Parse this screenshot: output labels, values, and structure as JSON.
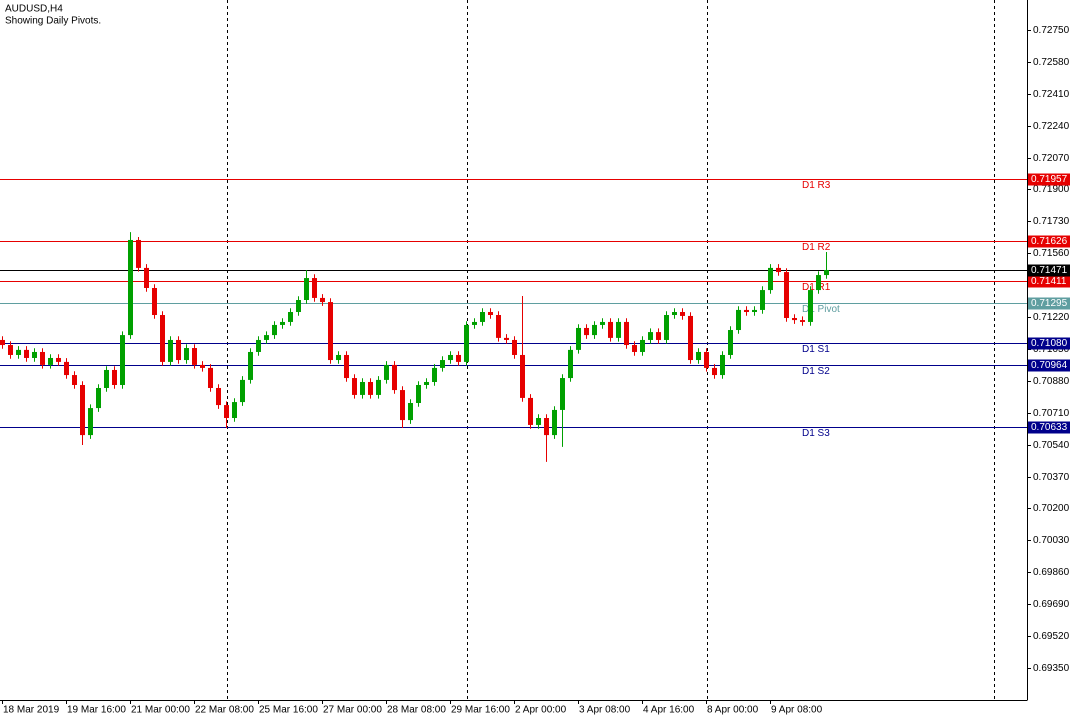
{
  "chart_data": {
    "type": "candlestick",
    "title": "AUDUSD,H4",
    "subtitle": "Showing Daily Pivots.",
    "up_color": "#00a000",
    "down_color": "#e60000",
    "grid": false,
    "categories": [
      "18 Mar 2019",
      null,
      null,
      null,
      null,
      null,
      null,
      null,
      "19 Mar 16:00",
      null,
      null,
      null,
      null,
      null,
      null,
      null,
      "21 Mar 00:00",
      null,
      null,
      null,
      null,
      null,
      null,
      null,
      "22 Mar 08:00",
      null,
      null,
      null,
      null,
      null,
      null,
      null,
      "25 Mar 16:00",
      null,
      null,
      null,
      null,
      null,
      null,
      null,
      "27 Mar 00:00",
      null,
      null,
      null,
      null,
      null,
      null,
      null,
      "28 Mar 08:00",
      null,
      null,
      null,
      null,
      null,
      null,
      null,
      "29 Mar 16:00",
      null,
      null,
      null,
      null,
      null,
      null,
      null,
      "2 Apr 00:00",
      null,
      null,
      null,
      null,
      null,
      null,
      null,
      "3 Apr 08:00",
      null,
      null,
      null,
      null,
      null,
      null,
      null,
      "4 Apr 16:00",
      null,
      null,
      null,
      null,
      null,
      null,
      null,
      "8 Apr 00:00",
      null,
      null,
      null,
      null,
      null,
      null,
      null,
      "9 Apr 08:00",
      null,
      null,
      null,
      null,
      null,
      null,
      null
    ],
    "open": [
      0.71098,
      0.71071,
      0.71018,
      0.71045,
      0.71002,
      0.71034,
      0.70965,
      0.71002,
      0.70981,
      0.70911,
      0.70858,
      0.70591,
      0.70735,
      0.70842,
      0.70938,
      0.70858,
      0.71124,
      0.71631,
      0.71482,
      0.71375,
      0.71231,
      0.70981,
      0.71098,
      0.70991,
      0.71055,
      0.70965,
      0.70949,
      0.70842,
      0.70751,
      0.70682,
      0.70767,
      0.70885,
      0.71034,
      0.71098,
      0.71124,
      0.71178,
      0.71194,
      0.71247,
      0.71311,
      0.71428,
      0.71322,
      0.713,
      0.70991,
      0.71018,
      0.70895,
      0.70805,
      0.70874,
      0.70805,
      0.70885,
      0.70965,
      0.70831,
      0.70671,
      0.70762,
      0.70858,
      0.70874,
      0.70949,
      0.70991,
      0.71018,
      0.70981,
      0.71178,
      0.71194,
      0.71247,
      0.71231,
      0.71109,
      0.71098,
      0.71018,
      0.70789,
      0.70645,
      0.70682,
      0.70591,
      0.70725,
      0.70895,
      0.71045,
      0.71162,
      0.71124,
      0.71178,
      0.71194,
      0.71109,
      0.71194,
      0.71071,
      0.71034,
      0.71098,
      0.7114,
      0.71098,
      0.71231,
      0.71247,
      0.71226,
      0.70991,
      0.71034,
      0.70949,
      0.70911,
      0.71018,
      0.71151,
      0.71258,
      0.71247,
      0.71258,
      0.71364,
      0.71482,
      0.7146,
      0.71215,
      0.71204,
      0.71194,
      0.71364,
      0.71444
    ],
    "high": [
      0.71118,
      0.71091,
      0.71065,
      0.71065,
      0.71054,
      0.71054,
      0.71022,
      0.71022,
      0.71001,
      0.70931,
      0.70878,
      0.70755,
      0.70862,
      0.70958,
      0.70958,
      0.71144,
      0.71673,
      0.71647,
      0.71502,
      0.71395,
      0.71251,
      0.71118,
      0.71118,
      0.71075,
      0.71075,
      0.70985,
      0.70969,
      0.70862,
      0.70771,
      0.70787,
      0.70905,
      0.71054,
      0.71118,
      0.71144,
      0.71198,
      0.71214,
      0.71267,
      0.71331,
      0.71471,
      0.71448,
      0.71342,
      0.7132,
      0.71038,
      0.71038,
      0.70915,
      0.70894,
      0.70894,
      0.70905,
      0.70985,
      0.70985,
      0.70851,
      0.70782,
      0.70878,
      0.70894,
      0.70969,
      0.71011,
      0.71038,
      0.71038,
      0.71198,
      0.71214,
      0.71267,
      0.71267,
      0.71251,
      0.71129,
      0.71118,
      0.71332,
      0.70809,
      0.70702,
      0.70702,
      0.70745,
      0.70915,
      0.71065,
      0.71182,
      0.71182,
      0.71198,
      0.71214,
      0.71214,
      0.71214,
      0.71214,
      0.71091,
      0.71118,
      0.7116,
      0.7116,
      0.71251,
      0.71267,
      0.71267,
      0.71246,
      0.71054,
      0.71054,
      0.70969,
      0.71038,
      0.71171,
      0.71278,
      0.71278,
      0.71278,
      0.71384,
      0.71502,
      0.71502,
      0.7148,
      0.71235,
      0.71224,
      0.71384,
      0.71464,
      0.71567
    ],
    "low": [
      0.71051,
      0.70998,
      0.70998,
      0.70982,
      0.70982,
      0.70945,
      0.70945,
      0.70961,
      0.70891,
      0.70838,
      0.70538,
      0.70571,
      0.70715,
      0.70822,
      0.70838,
      0.70838,
      0.71104,
      0.71462,
      0.71355,
      0.71211,
      0.70961,
      0.70961,
      0.70971,
      0.70971,
      0.70945,
      0.70929,
      0.70822,
      0.70731,
      0.70629,
      0.70662,
      0.70747,
      0.70865,
      0.71014,
      0.71078,
      0.71104,
      0.71158,
      0.71174,
      0.71227,
      0.71291,
      0.71302,
      0.7128,
      0.70971,
      0.70971,
      0.70875,
      0.70785,
      0.70785,
      0.70785,
      0.70785,
      0.70865,
      0.70811,
      0.70629,
      0.70651,
      0.70742,
      0.70838,
      0.70854,
      0.70929,
      0.70971,
      0.70961,
      0.70961,
      0.71158,
      0.71174,
      0.71211,
      0.71089,
      0.71078,
      0.70998,
      0.70769,
      0.70625,
      0.70625,
      0.70448,
      0.70571,
      0.70528,
      0.70875,
      0.71025,
      0.71104,
      0.71104,
      0.71158,
      0.71089,
      0.71089,
      0.71051,
      0.71014,
      0.71014,
      0.71078,
      0.71078,
      0.71078,
      0.71211,
      0.71206,
      0.70971,
      0.70971,
      0.70929,
      0.70891,
      0.70891,
      0.70998,
      0.71131,
      0.71227,
      0.71227,
      0.71238,
      0.71344,
      0.7144,
      0.71195,
      0.71184,
      0.71174,
      0.71174,
      0.71344,
      0.71424
    ],
    "close": [
      0.71071,
      0.71018,
      0.71045,
      0.71002,
      0.71034,
      0.70965,
      0.71002,
      0.70981,
      0.70911,
      0.70858,
      0.70591,
      0.70735,
      0.70842,
      0.70938,
      0.70858,
      0.71124,
      0.71631,
      0.71482,
      0.71375,
      0.71231,
      0.70981,
      0.71098,
      0.70991,
      0.71055,
      0.70965,
      0.70949,
      0.70842,
      0.70751,
      0.70682,
      0.70767,
      0.70885,
      0.71034,
      0.71098,
      0.71124,
      0.71178,
      0.71194,
      0.71247,
      0.71311,
      0.71428,
      0.71322,
      0.713,
      0.70991,
      0.71018,
      0.70895,
      0.70805,
      0.70874,
      0.70805,
      0.70885,
      0.70965,
      0.70831,
      0.70671,
      0.70762,
      0.70858,
      0.70874,
      0.70949,
      0.70991,
      0.71018,
      0.70981,
      0.71178,
      0.71194,
      0.71247,
      0.71231,
      0.71109,
      0.71098,
      0.71018,
      0.70789,
      0.70645,
      0.70682,
      0.70591,
      0.70725,
      0.70895,
      0.71045,
      0.71162,
      0.71124,
      0.71178,
      0.71194,
      0.71109,
      0.71194,
      0.71071,
      0.71034,
      0.71098,
      0.7114,
      0.71098,
      0.71231,
      0.71247,
      0.71226,
      0.70991,
      0.71034,
      0.70949,
      0.70911,
      0.71018,
      0.71151,
      0.71258,
      0.71247,
      0.71258,
      0.71364,
      0.71482,
      0.7146,
      0.71215,
      0.71204,
      0.71194,
      0.71364,
      0.71444,
      0.71471
    ],
    "ylim": [
      0.69179,
      0.7291
    ],
    "yticks": [
      {
        "value": 0.7275,
        "label": "0.72750"
      },
      {
        "value": 0.7258,
        "label": "0.72580"
      },
      {
        "value": 0.7241,
        "label": "0.72410"
      },
      {
        "value": 0.7224,
        "label": "0.72240"
      },
      {
        "value": 0.7207,
        "label": "0.72070"
      },
      {
        "value": 0.719,
        "label": "0.71900"
      },
      {
        "value": 0.7173,
        "label": "0.71730"
      },
      {
        "value": 0.7156,
        "label": "0.71560"
      },
      {
        "value": 0.7122,
        "label": "0.71220"
      },
      {
        "value": 0.7105,
        "label": "0.71050"
      },
      {
        "value": 0.7088,
        "label": "0.70880"
      },
      {
        "value": 0.7071,
        "label": "0.70710"
      },
      {
        "value": 0.7054,
        "label": "0.70540"
      },
      {
        "value": 0.7037,
        "label": "0.70370"
      },
      {
        "value": 0.702,
        "label": "0.70200"
      },
      {
        "value": 0.7003,
        "label": "0.70030"
      },
      {
        "value": 0.6986,
        "label": "0.69860"
      },
      {
        "value": 0.6969,
        "label": "0.69690"
      },
      {
        "value": 0.6952,
        "label": "0.69520"
      },
      {
        "value": 0.6935,
        "label": "0.69350"
      }
    ],
    "levels": [
      {
        "name": "D1 R3",
        "value": 0.71957,
        "value_label": "0.71957",
        "color": "#e60000"
      },
      {
        "name": "D1 R2",
        "value": 0.71626,
        "value_label": "0.71626",
        "color": "#e60000"
      },
      {
        "name": "D1 R1",
        "value": 0.71411,
        "value_label": "0.71411",
        "color": "#e60000"
      },
      {
        "name": "D1 Pivot",
        "value": 0.71295,
        "value_label": "0.71295",
        "color": "#5f9ea0"
      },
      {
        "name": "D1 S1",
        "value": 0.7108,
        "value_label": "0.71080",
        "color": "#00008b"
      },
      {
        "name": "D1 S2",
        "value": 0.70964,
        "value_label": "0.70964",
        "color": "#00008b"
      },
      {
        "name": "D1 S3",
        "value": 0.70633,
        "value_label": "0.70633",
        "color": "#00008b"
      }
    ],
    "current_price": {
      "value": 0.71471,
      "value_label": "0.71471",
      "color": "#000000"
    }
  }
}
